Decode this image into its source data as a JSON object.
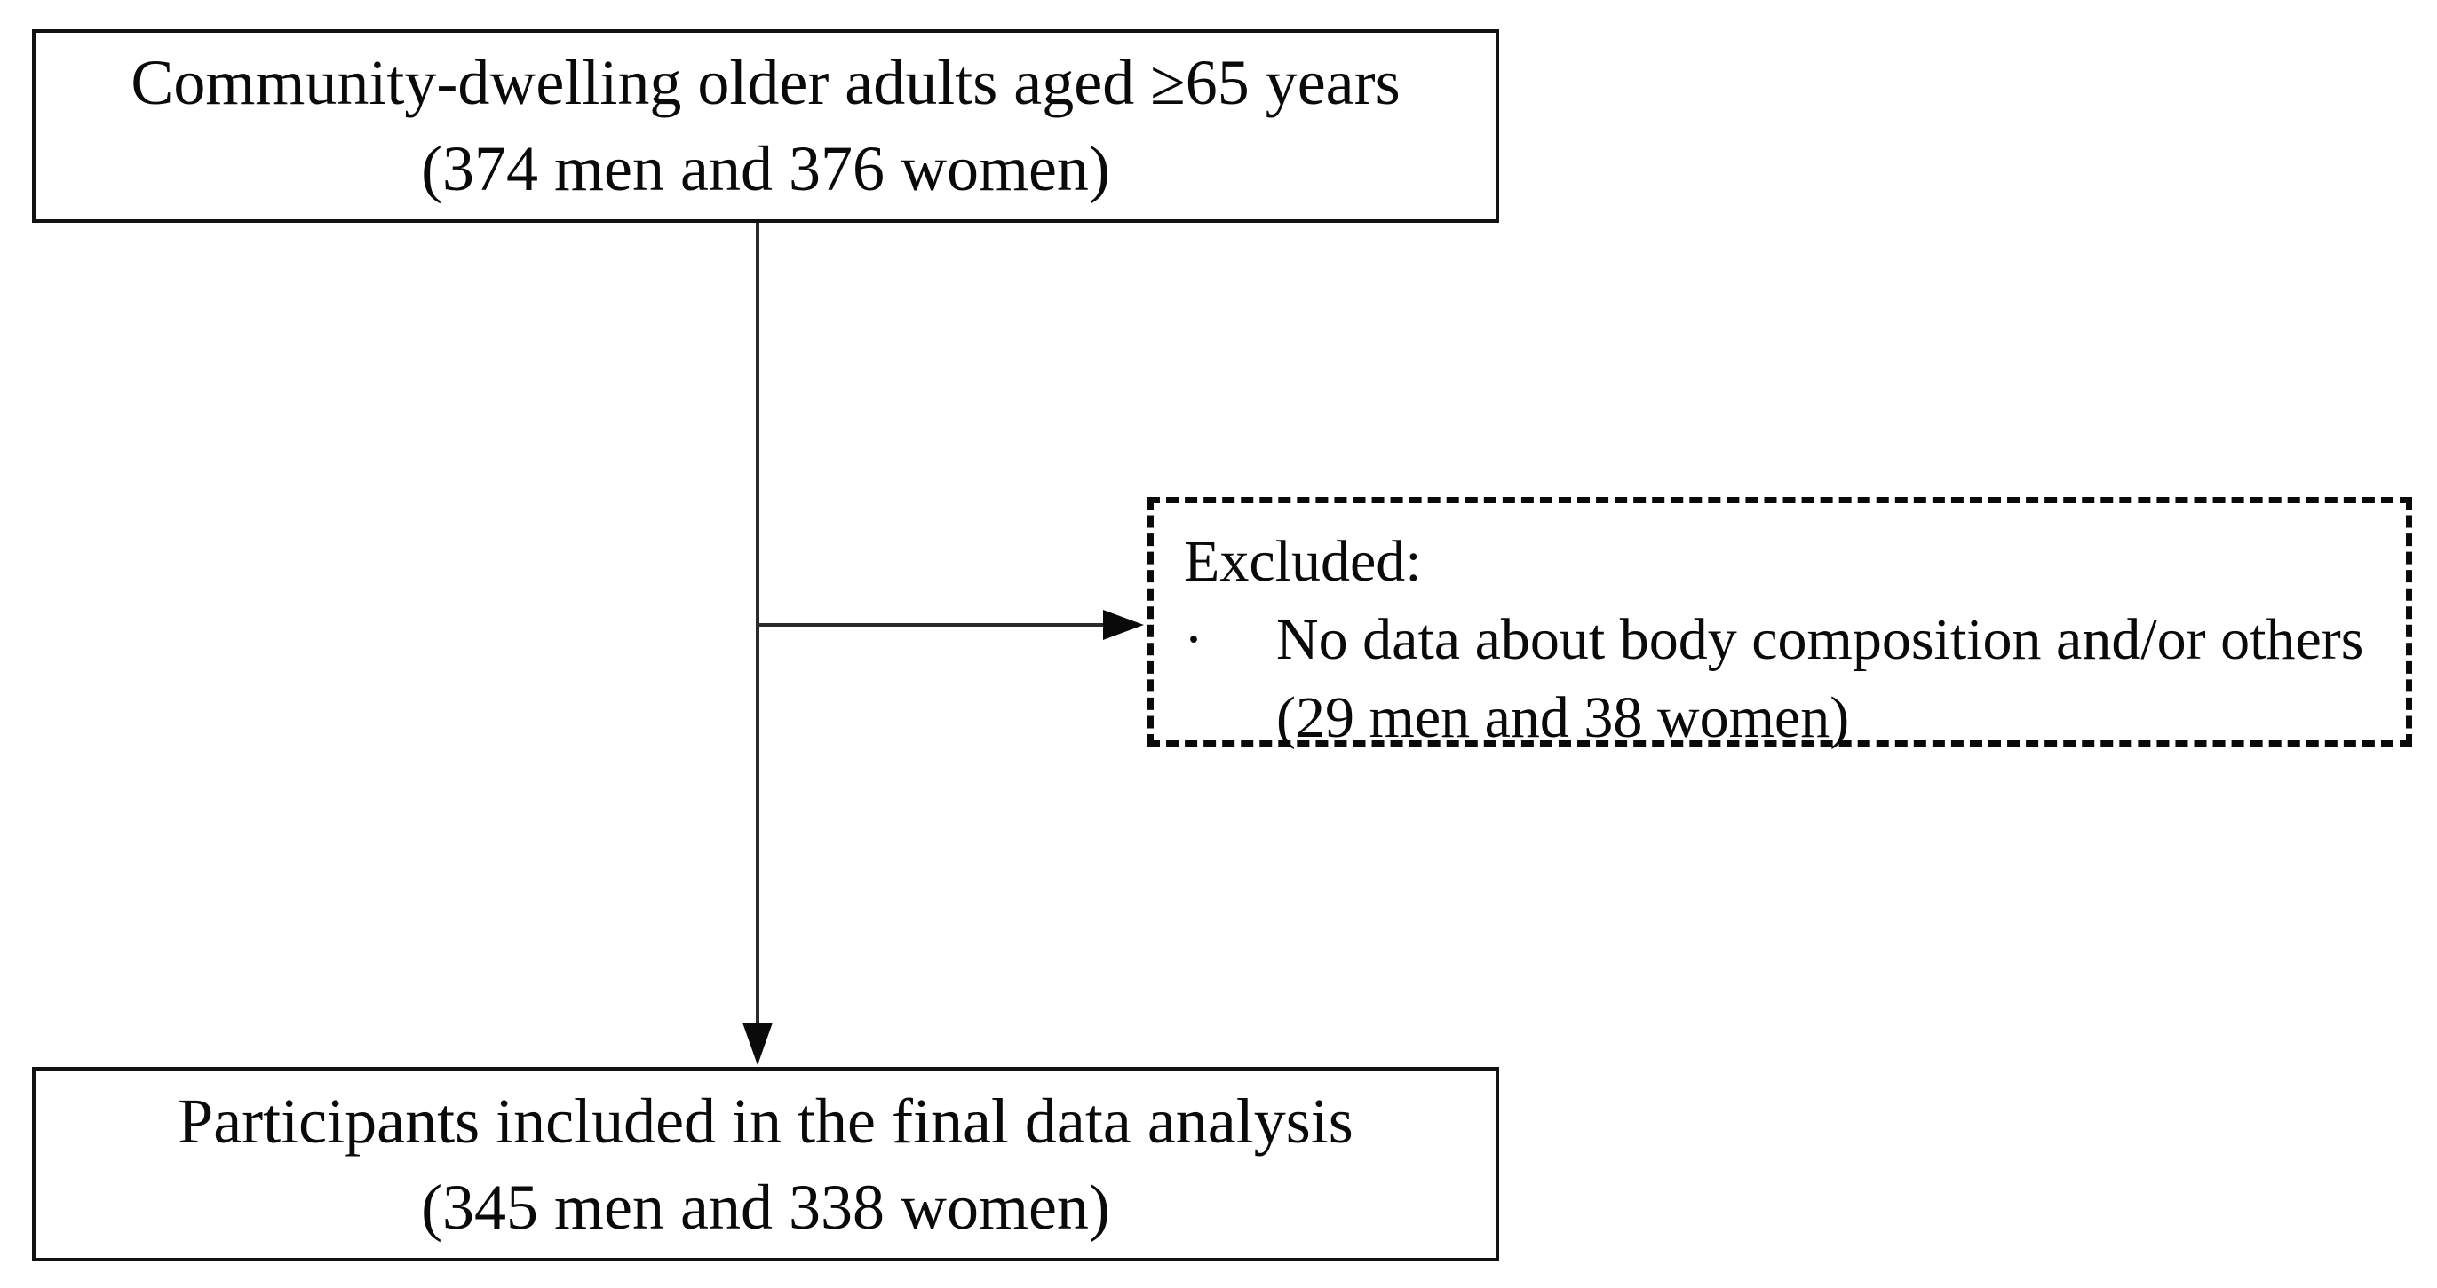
{
  "diagram": {
    "title_semantic": "participant-flow-diagram",
    "colors": {
      "background": "#ffffff",
      "box_border": "#121212",
      "dashed_border": "#0a0a0a",
      "text": "#0a0a0a",
      "line": "#2a2a2a"
    },
    "top_box": {
      "line1": "Community-dwelling older adults aged ≥65 years",
      "line2": "(374 men and 376 women)"
    },
    "excluded_box": {
      "title": "Excluded:",
      "bullet": "·",
      "item": "No data about body composition and/or others",
      "item_detail": "(29 men and 38 women)"
    },
    "bottom_box": {
      "line1": "Participants included in the final data analysis",
      "line2": "(345 men and 338 women)"
    }
  }
}
